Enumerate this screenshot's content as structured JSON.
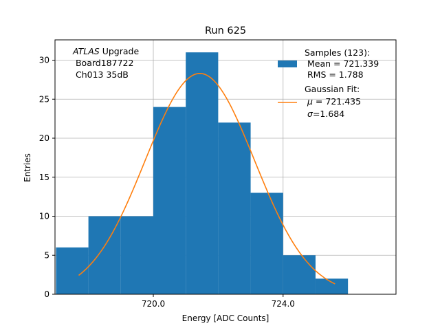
{
  "chart_data": {
    "type": "bar",
    "title": "Run 625",
    "xlabel": "Energy [ADC Counts]",
    "ylabel": "Entries",
    "xlim": [
      716.97,
      727.48
    ],
    "ylim": [
      0,
      32.6
    ],
    "grid": true,
    "x_ticks": [
      {
        "value": 720.0,
        "label": "720.0"
      },
      {
        "value": 724.0,
        "label": "724.0"
      }
    ],
    "y_ticks": [
      {
        "value": 0,
        "label": "0"
      },
      {
        "value": 5,
        "label": "5"
      },
      {
        "value": 10,
        "label": "10"
      },
      {
        "value": 15,
        "label": "15"
      },
      {
        "value": 20,
        "label": "20"
      },
      {
        "value": 25,
        "label": "25"
      },
      {
        "value": 30,
        "label": "30"
      }
    ],
    "histogram": {
      "bin_edges": [
        717.0,
        718.0,
        719.0,
        720.0,
        721.0,
        722.0,
        723.0,
        724.0,
        725.0,
        726.0
      ],
      "counts": [
        6,
        10,
        10,
        24,
        31,
        22,
        13,
        5,
        2
      ],
      "color": "#1f77b4"
    },
    "fit": {
      "mu": 721.435,
      "sigma": 1.684,
      "amplitude": 28.3,
      "x_range": [
        717.7,
        725.6
      ],
      "color": "#ff7f0e"
    },
    "annotation": {
      "italic": "ATLAS",
      "rest": " Upgrade",
      "line2": " Board187722",
      "line3": " Ch013 35dB"
    },
    "legend": {
      "position": "top-right",
      "samples": {
        "line1": "Samples (123):",
        "line2": " Mean = 721.339",
        "line3": " RMS = 1.788"
      },
      "fit": {
        "line1": "Gaussian Fit:",
        "mu_symbol": "μ",
        "mu_text": " = 721.435",
        "sigma_symbol": "σ",
        "sigma_text": "=1.684"
      }
    }
  }
}
